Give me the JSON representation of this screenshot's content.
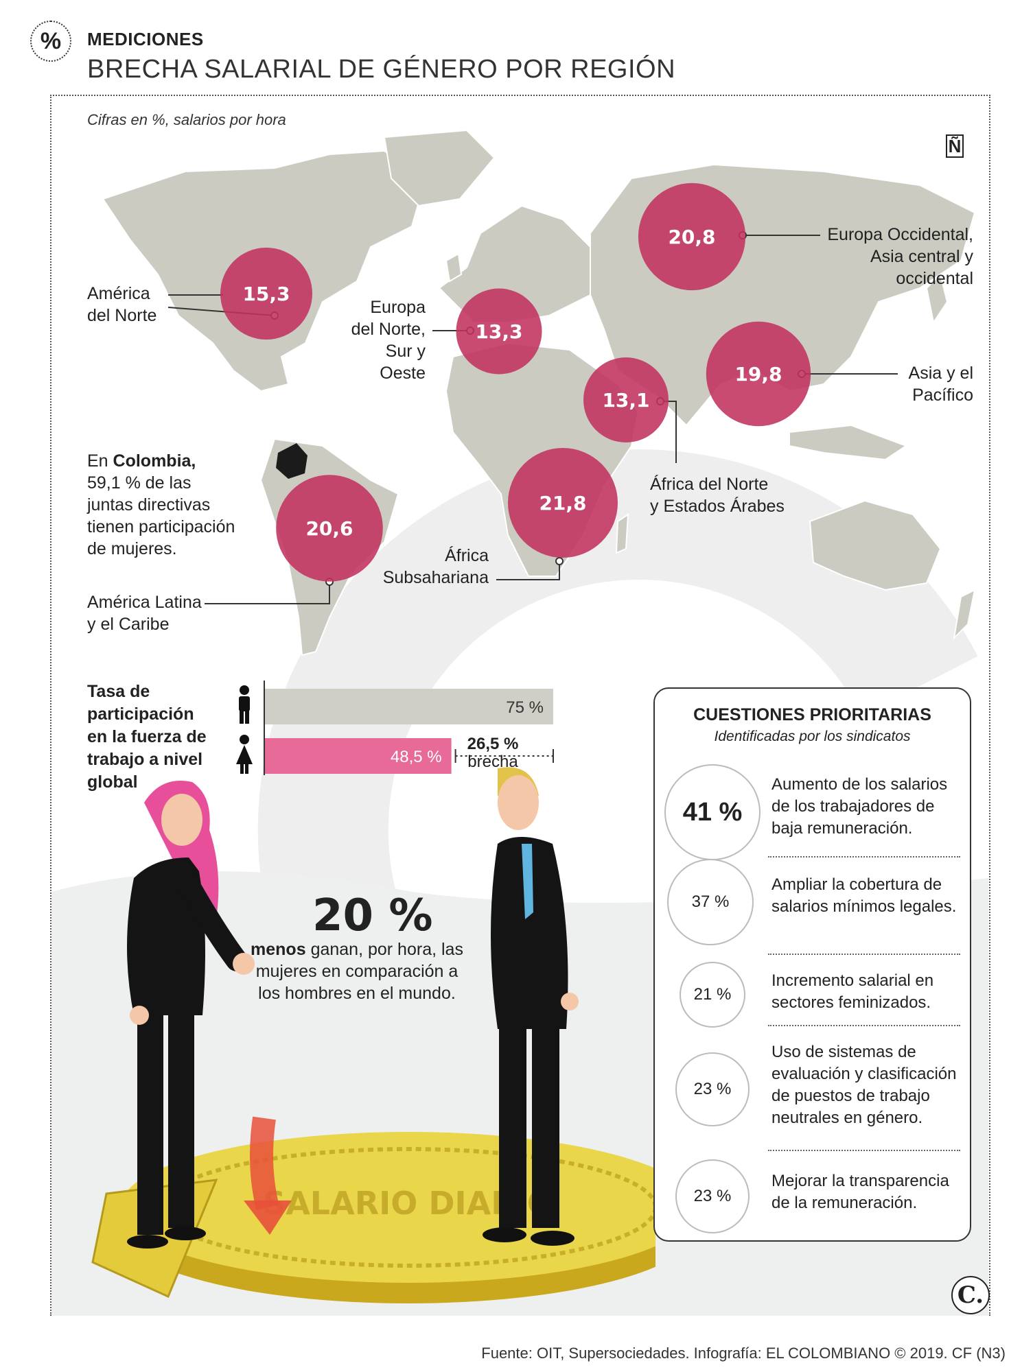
{
  "header": {
    "kicker": "MEDICIONES",
    "title": "BRECHA SALARIAL DE GÉNERO POR REGIÓN",
    "subtitle": "Cifras en %, salarios por hora",
    "pct_symbol": "%",
    "n_logo": "Ñ"
  },
  "chart_data": [
    {
      "type": "bubble-map",
      "title": "BRECHA SALARIAL DE GÉNERO POR REGIÓN",
      "unit": "%",
      "regions": [
        {
          "name": "América del Norte",
          "value": 15.3,
          "label": "15,3"
        },
        {
          "name": "Europa del Norte, Sur y Oeste",
          "value": 13.3,
          "label": "13,3"
        },
        {
          "name": "Europa Occidental, Asia central y occidental",
          "value": 20.8,
          "label": "20,8"
        },
        {
          "name": "Asia y el Pacífico",
          "value": 19.8,
          "label": "19,8"
        },
        {
          "name": "África del Norte y Estados Árabes",
          "value": 13.1,
          "label": "13,1"
        },
        {
          "name": "África Subsahariana",
          "value": 21.8,
          "label": "21,8"
        },
        {
          "name": "América Latina y el Caribe",
          "value": 20.6,
          "label": "20,6"
        }
      ],
      "bubble_color": "#c2325f"
    },
    {
      "type": "bar",
      "title": "Tasa de participación en la fuerza de trabajo a nivel global",
      "categories": [
        "Hombres",
        "Mujeres"
      ],
      "values": [
        75,
        48.5
      ],
      "value_labels": [
        "75 %",
        "48,5 %"
      ],
      "xlim": [
        0,
        100
      ],
      "colors": [
        "#cfcfc8",
        "#e76a98"
      ],
      "gap": {
        "value": "26,5 %",
        "label": "brecha"
      }
    },
    {
      "type": "table",
      "title": "CUESTIONES PRIORITARIAS",
      "subtitle": "Identificadas por los sindicatos",
      "rows": [
        {
          "value": "41 %",
          "text": "Aumento de los salarios de los trabajadores de baja remuneración."
        },
        {
          "value": "37 %",
          "text": "Ampliar la cobertura de salarios mínimos legales."
        },
        {
          "value": "21 %",
          "text": "Incremento salarial en sectores feminizados."
        },
        {
          "value": "23 %",
          "text": "Uso de sistemas de evaluación y clasificación de puestos de trabajo neutrales en género."
        },
        {
          "value": "23 %",
          "text": "Mejorar la transparencia de la remuneración."
        }
      ]
    }
  ],
  "map_labels": {
    "north_america": [
      "América",
      "del Norte"
    ],
    "north_europe": [
      "Europa",
      "del Norte,",
      "Sur y Oeste"
    ],
    "west_europe_asia": [
      "Europa Occidental,",
      "Asia central y",
      "occidental"
    ],
    "asia_pacific": [
      "Asia y el",
      "Pacífico"
    ],
    "north_africa": [
      "África del Norte",
      "y Estados Árabes"
    ],
    "subsaharan": [
      "África",
      "Subsahariana"
    ],
    "latam": [
      "América Latina",
      "y el Caribe"
    ],
    "colombia_prefix": "En ",
    "colombia_bold": "Colombia,",
    "colombia_rest": [
      "59,1 % de las",
      "juntas directivas",
      "tienen participación",
      "de mujeres."
    ]
  },
  "labor": {
    "title_lines": [
      "Tasa de",
      "participación",
      "en la fuerza de",
      "trabajo a nivel",
      "global"
    ],
    "gap_value": "26,5 %",
    "gap_label": "brecha"
  },
  "callout": {
    "big": "20 %",
    "bold": "menos",
    "rest": " ganan, por hora, las mujeres en comparación a los hombres en el mundo."
  },
  "coin_text": "SALARIO DIARIO",
  "footer": {
    "source": "Fuente: OIT, Supersociedades. Infografía: EL COLOMBIANO © 2019. CF (N3)",
    "logo": "C."
  }
}
